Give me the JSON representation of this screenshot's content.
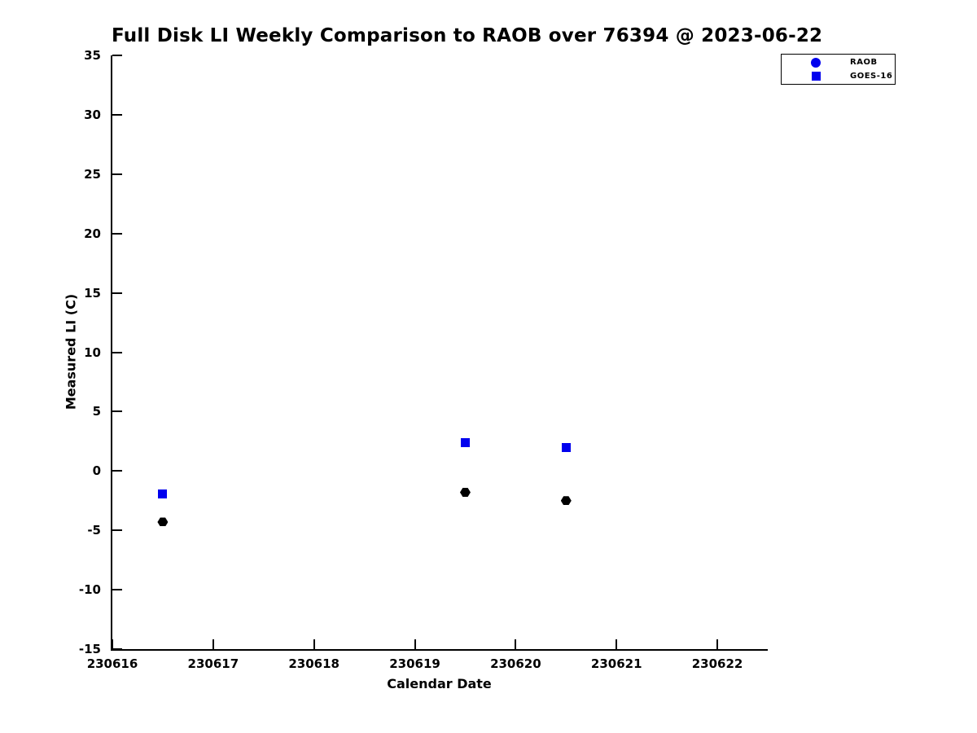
{
  "chart_data": {
    "type": "scatter",
    "title": "Full Disk LI Weekly Comparison to RAOB over 76394 @ 2023-06-22",
    "xlabel": "Calendar Date",
    "ylabel": "Measured LI (C)",
    "xlim": [
      230616,
      230622.5
    ],
    "ylim": [
      -15,
      35
    ],
    "xticks": [
      230616,
      230617,
      230618,
      230619,
      230620,
      230621,
      230622
    ],
    "yticks": [
      -15,
      -10,
      -5,
      0,
      5,
      10,
      15,
      20,
      25,
      30,
      35
    ],
    "grid": false,
    "legend_position": "top-right",
    "series": [
      {
        "name": "RAOB",
        "marker": "hexagon",
        "color": "#000000",
        "legend_color": "#0000ee",
        "x": [
          230616.5,
          230619.5,
          230620.5
        ],
        "y": [
          -4.3,
          -1.8,
          -2.5
        ]
      },
      {
        "name": "GOES-16",
        "marker": "square",
        "color": "#0000ee",
        "legend_color": "#0000ee",
        "x": [
          230616.5,
          230619.5,
          230620.5
        ],
        "y": [
          -1.9,
          2.4,
          2.0
        ]
      }
    ]
  },
  "colors": {
    "background": "#ffffff",
    "axis": "#000000",
    "marker_blue": "#0000ee",
    "marker_black": "#000000"
  }
}
